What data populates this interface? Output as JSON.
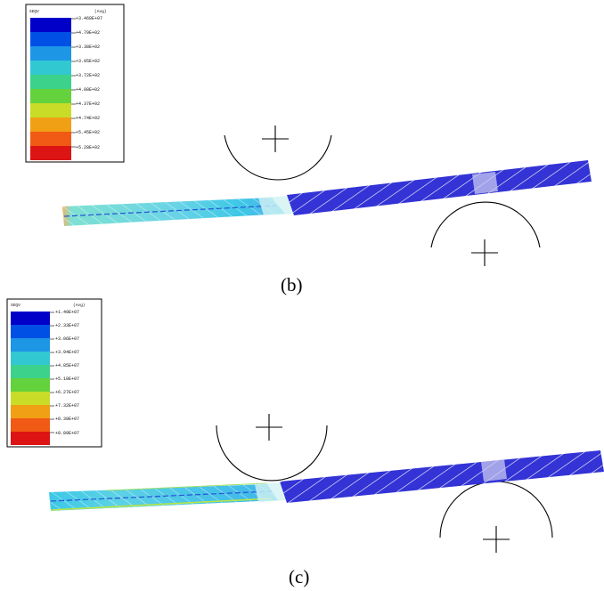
{
  "colors": {
    "scale": [
      "#0000c8",
      "#0050e6",
      "#1e96e6",
      "#32c8d2",
      "#3cd28c",
      "#64d23c",
      "#c8dc28",
      "#f0a014",
      "#f05a14",
      "#dc1414"
    ],
    "blue_section": "#3333d6",
    "mesh_stripe": "#ffffff"
  },
  "panels": [
    {
      "caption": "(b)",
      "legend": {
        "header_left": "SEQV",
        "header_right": "(Avg)",
        "values": [
          "+3.468E+07",
          "+4.79E+02",
          "+3.38E+02",
          "+3.05E+02",
          "+3.72E+02",
          "+4.08E+02",
          "+4.37E+02",
          "+4.74E+02",
          "+5.45E+02",
          "+5.28E+02"
        ]
      }
    },
    {
      "caption": "(c)",
      "legend": {
        "header_left": "SEQV",
        "header_right": "(Avg)",
        "values": [
          "+1.49E+07",
          "+2.33E+07",
          "+3.06E+07",
          "+3.94E+07",
          "+4.85E+07",
          "+5.18E+07",
          "+6.27E+07",
          "+7.32E+07",
          "+8.39E+07",
          "+8.89E+07"
        ]
      }
    }
  ]
}
